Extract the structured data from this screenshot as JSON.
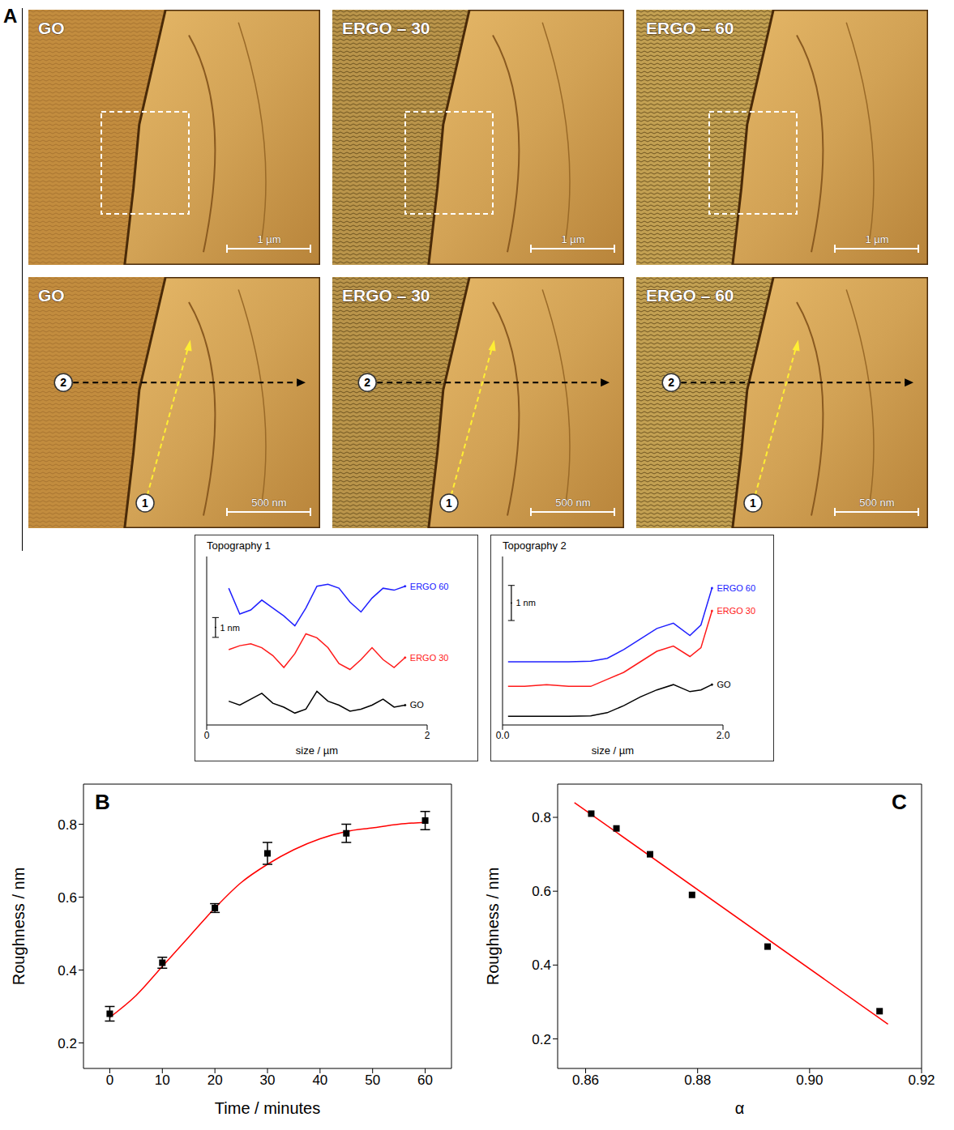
{
  "panel_a": {
    "letter": "A",
    "rows": [
      {
        "images": [
          {
            "title": "GO",
            "scale_bar": "1 µm"
          },
          {
            "title": "ERGO – 30",
            "scale_bar": "1 µm"
          },
          {
            "title": "ERGO – 60",
            "scale_bar": "1 µm"
          }
        ]
      },
      {
        "images": [
          {
            "title": "GO",
            "scale_bar": "500 nm"
          },
          {
            "title": "ERGO – 30",
            "scale_bar": "500 nm"
          },
          {
            "title": "ERGO – 60",
            "scale_bar": "500 nm"
          }
        ],
        "profile_markers": [
          "1",
          "2"
        ]
      }
    ]
  },
  "chart_data": [
    {
      "type": "line",
      "title": "Topography 1",
      "x_label": "size / µm",
      "xlim": [
        0,
        2
      ],
      "xticks": [
        0,
        2
      ],
      "ylim": [
        0,
        8.5
      ],
      "tick_labels": "x",
      "scale_bar": {
        "value": 1,
        "label": "1 nm"
      },
      "x": [
        0.2,
        0.3,
        0.4,
        0.5,
        0.6,
        0.7,
        0.8,
        0.9,
        1.0,
        1.1,
        1.2,
        1.3,
        1.4,
        1.5,
        1.6,
        1.7,
        1.8
      ],
      "series": [
        {
          "name": "GO",
          "color": "#000000",
          "values": [
            1.2,
            1.0,
            1.3,
            1.6,
            1.1,
            0.9,
            0.6,
            0.8,
            1.7,
            1.2,
            1.0,
            0.7,
            0.8,
            1.0,
            1.3,
            0.9,
            1.0
          ]
        },
        {
          "name": "ERGO 30",
          "color": "#ff1a1a",
          "values": [
            3.8,
            4.0,
            4.1,
            3.9,
            3.5,
            2.9,
            3.6,
            4.6,
            4.4,
            3.9,
            3.1,
            2.8,
            3.3,
            3.9,
            3.3,
            2.9,
            3.4
          ]
        },
        {
          "name": "ERGO 60",
          "color": "#2020ff",
          "values": [
            6.9,
            5.6,
            5.8,
            6.3,
            5.9,
            5.5,
            5.0,
            5.9,
            7.0,
            7.1,
            6.9,
            6.2,
            5.7,
            6.4,
            6.9,
            6.8,
            7.0
          ]
        }
      ]
    },
    {
      "type": "line",
      "title": "Topography 2",
      "x_label": "size / µm",
      "xlim": [
        0,
        2
      ],
      "xticks": [
        {
          "value": 0,
          "label": "0.0"
        },
        {
          "value": 2,
          "label": "2.0"
        }
      ],
      "ylim": [
        0,
        4.8
      ],
      "tick_labels": "x",
      "scale_bar": {
        "value": 1,
        "label": "1 nm"
      },
      "x": [
        0.05,
        0.2,
        0.4,
        0.6,
        0.8,
        0.95,
        1.1,
        1.25,
        1.4,
        1.55,
        1.7,
        1.8,
        1.9
      ],
      "series": [
        {
          "name": "GO",
          "color": "#000000",
          "values": [
            0.25,
            0.25,
            0.25,
            0.25,
            0.26,
            0.35,
            0.55,
            0.8,
            1.0,
            1.15,
            0.95,
            1.0,
            1.15
          ]
        },
        {
          "name": "ERGO 30",
          "color": "#ff1a1a",
          "values": [
            1.1,
            1.1,
            1.15,
            1.1,
            1.1,
            1.3,
            1.5,
            1.8,
            2.1,
            2.25,
            1.95,
            2.2,
            3.25
          ]
        },
        {
          "name": "ERGO 60",
          "color": "#2020ff",
          "values": [
            1.8,
            1.8,
            1.8,
            1.8,
            1.82,
            1.9,
            2.15,
            2.45,
            2.75,
            2.9,
            2.55,
            2.85,
            3.9
          ]
        }
      ]
    },
    {
      "type": "scatter",
      "letter": "B",
      "x_label": "Time / minutes",
      "y_label": "Roughness / nm",
      "xlim": [
        -5,
        65
      ],
      "xticks": [
        0,
        10,
        20,
        30,
        40,
        50,
        60
      ],
      "ylim": [
        0.13,
        0.91
      ],
      "yticks": [
        0.2,
        0.4,
        0.6,
        0.8
      ],
      "series": [
        {
          "type": "scatter",
          "marker": "square",
          "color": "#000000",
          "x": [
            0,
            10,
            20,
            30,
            45,
            60
          ],
          "values": [
            0.28,
            0.42,
            0.57,
            0.72,
            0.775,
            0.81
          ],
          "errors": [
            0.02,
            0.015,
            0.012,
            0.03,
            0.025,
            0.025
          ]
        },
        {
          "type": "line",
          "line_style": "solid",
          "color": "#ff0000",
          "x": [
            0,
            5,
            10,
            15,
            20,
            25,
            30,
            35,
            40,
            45,
            50,
            55,
            60
          ],
          "values": [
            0.27,
            0.33,
            0.41,
            0.49,
            0.57,
            0.64,
            0.69,
            0.73,
            0.76,
            0.78,
            0.79,
            0.8,
            0.805
          ]
        }
      ]
    },
    {
      "type": "scatter",
      "letter": "C",
      "x_label": "α",
      "y_label": "Roughness / nm",
      "xlim": [
        0.855,
        0.92
      ],
      "xticks": [
        0.86,
        0.88,
        {
          "value": 0.9,
          "label": "0.90"
        },
        0.92
      ],
      "ylim": [
        0.12,
        0.89
      ],
      "yticks": [
        0.2,
        0.4,
        0.6,
        0.8
      ],
      "series": [
        {
          "type": "scatter",
          "marker": "square",
          "color": "#000000",
          "x": [
            0.861,
            0.8655,
            0.8715,
            0.879,
            0.8925,
            0.9125
          ],
          "values": [
            0.81,
            0.77,
            0.7,
            0.59,
            0.45,
            0.275
          ]
        },
        {
          "type": "line",
          "line_style": "solid",
          "color": "#ff0000",
          "x": [
            0.858,
            0.914
          ],
          "values": [
            0.84,
            0.24
          ]
        }
      ]
    }
  ]
}
